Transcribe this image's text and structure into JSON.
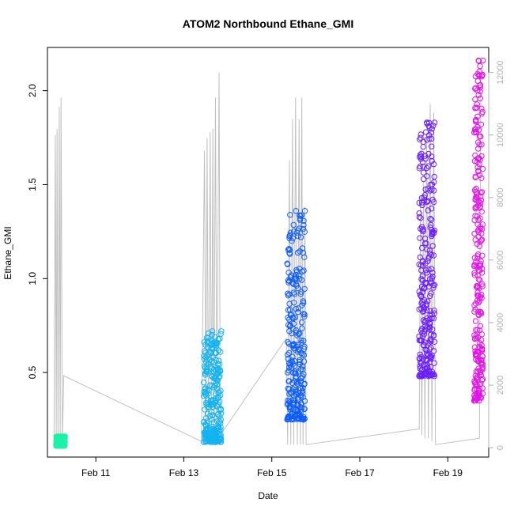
{
  "chart_data": {
    "type": "scatter",
    "title": "ATOM2 Northbound Ethane_GMI",
    "xlabel": "Date",
    "ylabel": "Ethane_GMI",
    "x_range_days": [
      9.9,
      19.93
    ],
    "ylim": [
      0.05,
      2.23
    ],
    "y_right_lim": [
      -300,
      12800
    ],
    "x_ticks": [
      {
        "day": 11,
        "label": "Feb 11"
      },
      {
        "day": 13,
        "label": "Feb 13"
      },
      {
        "day": 15,
        "label": "Feb 15"
      },
      {
        "day": 17,
        "label": "Feb 17"
      },
      {
        "day": 19,
        "label": "Feb 19"
      }
    ],
    "y_ticks": [
      {
        "value": 0.5,
        "label": "0.5"
      },
      {
        "value": 1.0,
        "label": "1.0"
      },
      {
        "value": 1.5,
        "label": "1.5"
      },
      {
        "value": 2.0,
        "label": "2.0"
      }
    ],
    "y_right_ticks": [
      {
        "value": 0,
        "label": "0"
      },
      {
        "value": 2000,
        "label": "2000"
      },
      {
        "value": 4000,
        "label": "4000"
      },
      {
        "value": 6000,
        "label": "6000"
      },
      {
        "value": 8000,
        "label": "8000"
      },
      {
        "value": 10000,
        "label": "10000"
      },
      {
        "value": 12000,
        "label": "12000"
      }
    ],
    "grid": false,
    "legend": "none",
    "point_series": [
      {
        "color": "#1cf2a8",
        "x": [
          10.1,
          10.3
        ],
        "y": [
          0.11,
          0.16
        ]
      },
      {
        "color": "#13b3f0",
        "x": [
          13.45,
          13.85
        ],
        "y": [
          0.13,
          0.72
        ]
      },
      {
        "color": "#0d5cff",
        "x": [
          15.35,
          15.75
        ],
        "y": [
          0.25,
          1.36
        ]
      },
      {
        "color": "#6a1eff",
        "x": [
          18.35,
          18.7
        ],
        "y": [
          0.48,
          1.83
        ]
      },
      {
        "color": "#e214e8",
        "x": [
          19.6,
          19.8
        ],
        "y": [
          0.35,
          2.16
        ]
      }
    ],
    "line_series": {
      "color": "#c0c0c0",
      "axis": "right",
      "points": [
        [
          10.05,
          0
        ],
        [
          10.08,
          10000
        ],
        [
          10.1,
          50
        ],
        [
          10.12,
          10200
        ],
        [
          10.14,
          100
        ],
        [
          10.17,
          10900
        ],
        [
          10.19,
          200
        ],
        [
          10.21,
          11200
        ],
        [
          10.24,
          200
        ],
        [
          10.27,
          2300
        ],
        [
          13.4,
          200
        ],
        [
          13.47,
          9500
        ],
        [
          13.5,
          200
        ],
        [
          13.53,
          9900
        ],
        [
          13.56,
          200
        ],
        [
          13.6,
          10100
        ],
        [
          13.63,
          300
        ],
        [
          13.66,
          10200
        ],
        [
          13.68,
          300
        ],
        [
          13.72,
          11200
        ],
        [
          13.75,
          300
        ],
        [
          13.8,
          12000
        ],
        [
          13.83,
          400
        ],
        [
          15.33,
          3500
        ],
        [
          15.36,
          100
        ],
        [
          15.4,
          9200
        ],
        [
          15.43,
          100
        ],
        [
          15.47,
          10500
        ],
        [
          15.5,
          100
        ],
        [
          15.54,
          11200
        ],
        [
          15.58,
          100
        ],
        [
          15.62,
          10500
        ],
        [
          15.65,
          100
        ],
        [
          15.68,
          11200
        ],
        [
          15.71,
          100
        ],
        [
          15.75,
          7700
        ],
        [
          15.78,
          100
        ],
        [
          18.35,
          600
        ],
        [
          18.38,
          8000
        ],
        [
          18.41,
          400
        ],
        [
          18.45,
          8500
        ],
        [
          18.48,
          300
        ],
        [
          18.52,
          10000
        ],
        [
          18.56,
          300
        ],
        [
          18.6,
          11000
        ],
        [
          18.64,
          200
        ],
        [
          18.68,
          10700
        ],
        [
          18.72,
          100
        ],
        [
          19.72,
          300
        ],
        [
          19.75,
          12000
        ]
      ]
    }
  }
}
